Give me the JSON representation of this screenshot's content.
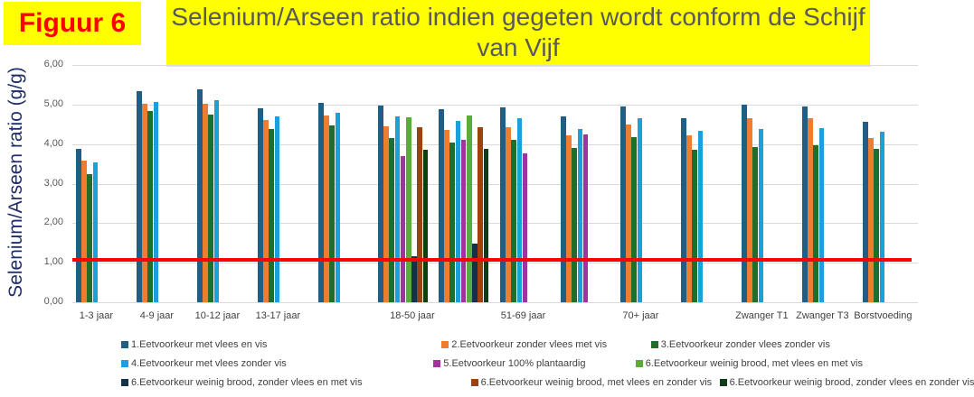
{
  "figure_label": "Figuur 6",
  "title": "Selenium/Arseen ratio indien gegeten wordt conform de Schijf van Vijf",
  "chart_data": {
    "type": "bar",
    "title": "Selenium/Arseen ratio indien gegeten wordt conform de Schijf van Vijf",
    "xlabel": "",
    "ylabel": "Selenium/Arseen ratio (g/g)",
    "ylim": [
      0,
      6
    ],
    "yticks": [
      "0,00",
      "1,00",
      "2,00",
      "3,00",
      "4,00",
      "5,00",
      "6,00"
    ],
    "grid": true,
    "legend_position": "bottom",
    "reference_line": {
      "value": 1.08,
      "color": "#ff0000"
    },
    "categories": [
      "1-3 jaar",
      "4-9 jaar",
      "10-12 jaar",
      "13-17 jaar",
      "",
      "18-50 jaar",
      "",
      "51-69 jaar",
      "",
      "70+ jaar",
      "",
      "Zwanger T1",
      "Zwanger T3",
      "Borstvoeding"
    ],
    "series": [
      {
        "name": "1.Eetvoorkeur met vlees en vis",
        "color": "#1f5f85",
        "values": [
          3.88,
          5.35,
          5.4,
          4.92,
          5.05,
          4.97,
          4.89,
          4.93,
          4.7,
          4.96,
          4.65,
          5.01,
          4.96,
          4.56
        ]
      },
      {
        "name": "2.Eetvoorkeur zonder vlees met vis",
        "color": "#ed7d31",
        "values": [
          3.58,
          5.02,
          5.03,
          4.61,
          4.73,
          4.45,
          4.36,
          4.43,
          4.23,
          4.5,
          4.22,
          4.66,
          4.65,
          4.16
        ]
      },
      {
        "name": "3.Eetvoorkeur zonder vlees zonder vis",
        "color": "#1e6e2c",
        "values": [
          3.25,
          4.83,
          4.76,
          4.39,
          4.48,
          4.16,
          4.04,
          4.12,
          3.9,
          4.18,
          3.87,
          3.92,
          3.97,
          3.88
        ]
      },
      {
        "name": "4.Eetvoorkeur met vlees zonder vis",
        "color": "#1aa0db",
        "values": [
          3.55,
          5.07,
          5.12,
          4.71,
          4.8,
          4.7,
          4.58,
          4.65,
          4.39,
          4.67,
          4.33,
          4.39,
          4.41,
          4.31
        ]
      },
      {
        "name": "5.Eetvoorkeur 100% plantaardig",
        "color": "#a1329e",
        "values": [
          null,
          null,
          null,
          null,
          null,
          3.69,
          4.11,
          3.77,
          4.25,
          null,
          null,
          null,
          null,
          null
        ]
      },
      {
        "name": "6.Eetvoorkeur weinig brood, met vlees en met vis",
        "color": "#5aab3a",
        "values": [
          null,
          null,
          null,
          null,
          null,
          4.68,
          4.73,
          null,
          null,
          null,
          null,
          null,
          null,
          null
        ]
      },
      {
        "name": "6.Eetvoorkeur weinig brood, zonder vlees en met vis",
        "color": "#13324a",
        "values": [
          null,
          null,
          null,
          null,
          null,
          1.16,
          1.48,
          null,
          null,
          null,
          null,
          null,
          null,
          null
        ]
      },
      {
        "name": "6.Eetvoorkeur weinig brood, met vlees en zonder vis",
        "color": "#9c4110",
        "values": [
          null,
          null,
          null,
          null,
          null,
          4.43,
          4.43,
          null,
          null,
          null,
          null,
          null,
          null,
          null
        ]
      },
      {
        "name": "6.Eetvoorkeur weinig brood, zonder vlees en zonder vis",
        "color": "#0f3d17",
        "values": [
          null,
          null,
          null,
          null,
          null,
          3.85,
          3.89,
          null,
          null,
          null,
          null,
          null,
          null,
          null
        ]
      }
    ]
  }
}
